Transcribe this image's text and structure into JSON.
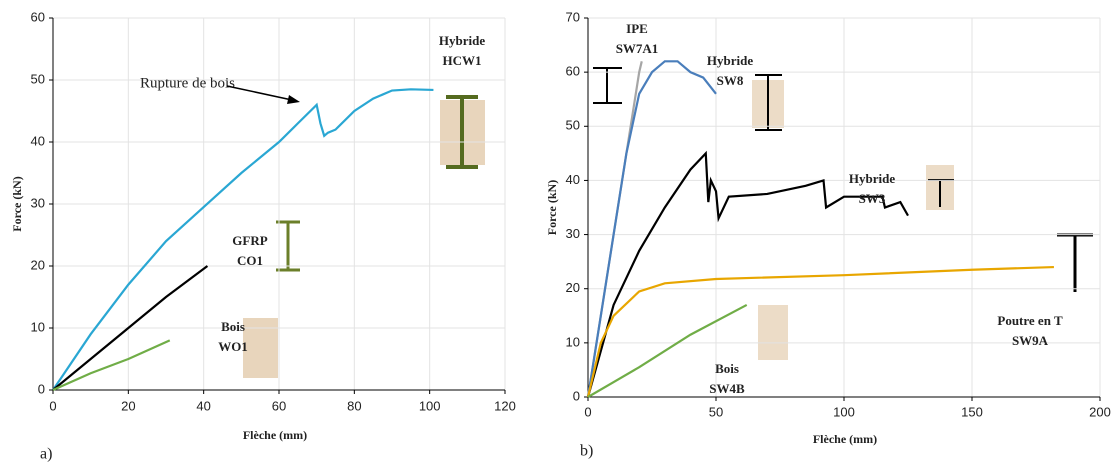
{
  "chart_data": [
    {
      "type": "line",
      "panel_label": "a)",
      "xlabel": "Flèche (mm)",
      "ylabel": "Force (kN)",
      "xlim": [
        0,
        120
      ],
      "xticks": [
        0,
        20,
        40,
        60,
        80,
        100,
        120
      ],
      "ylim": [
        0,
        60
      ],
      "yticks": [
        0,
        10,
        20,
        30,
        40,
        50,
        60
      ],
      "grid": true,
      "annotation": "Rupture de bois",
      "series": [
        {
          "label": [
            "Hybride",
            "HCW1"
          ],
          "color": "#2aa7d3",
          "x": [
            0,
            10,
            20,
            30,
            40,
            50,
            60,
            65,
            70,
            71,
            72,
            73,
            75,
            80,
            85,
            90,
            95,
            101
          ],
          "values": [
            0,
            9,
            17,
            24,
            29.5,
            35,
            40,
            43,
            46,
            43,
            41,
            41.5,
            42,
            45,
            47,
            48.3,
            48.5,
            48.4
          ]
        },
        {
          "label": [
            "GFRP",
            "CO1"
          ],
          "color": "#000000",
          "x": [
            0,
            10,
            20,
            30,
            41
          ],
          "values": [
            0,
            5,
            10,
            15,
            20
          ]
        },
        {
          "label": [
            "Bois",
            "WO1"
          ],
          "color": "#70ad47",
          "x": [
            0,
            10,
            20,
            31
          ],
          "values": [
            0,
            2.7,
            5,
            8
          ]
        }
      ]
    },
    {
      "type": "line",
      "panel_label": "b)",
      "xlabel": "Flèche (mm)",
      "ylabel": "Force (kN)",
      "xlim": [
        0,
        200
      ],
      "xticks": [
        0,
        50,
        100,
        150,
        200
      ],
      "ylim": [
        0,
        70
      ],
      "yticks": [
        0,
        10,
        20,
        30,
        40,
        50,
        60,
        70
      ],
      "grid": true,
      "series": [
        {
          "label": [
            "IPE",
            "SW7A1"
          ],
          "color": "#a6a6a6",
          "x": [
            0,
            5,
            10,
            15,
            20,
            21
          ],
          "values": [
            0,
            15,
            30,
            45,
            60,
            62
          ]
        },
        {
          "label": [
            "Hybride",
            "SW8"
          ],
          "color": "#4a7ebb",
          "x": [
            0,
            5,
            10,
            15,
            20,
            25,
            30,
            35,
            40,
            45,
            50
          ],
          "values": [
            0,
            15,
            30,
            45,
            56,
            60,
            62,
            62,
            60,
            59,
            56
          ]
        },
        {
          "label": [
            "Hybride",
            "SW3"
          ],
          "color": "#000000",
          "x": [
            0,
            10,
            20,
            30,
            40,
            46,
            47,
            48,
            50,
            51,
            55,
            70,
            85,
            92,
            93,
            100,
            115,
            116,
            122,
            125
          ],
          "values": [
            0,
            17,
            27,
            35,
            42,
            45,
            36,
            40,
            38,
            33,
            37,
            37.5,
            39,
            40,
            35,
            37,
            37,
            35,
            36,
            33.5
          ]
        },
        {
          "label": [
            "Poutre en T",
            "SW9A"
          ],
          "color": "#e8a600",
          "x": [
            0,
            5,
            10,
            20,
            30,
            50,
            100,
            150,
            182
          ],
          "values": [
            0,
            10,
            15,
            19.5,
            21,
            21.8,
            22.5,
            23.5,
            24
          ]
        },
        {
          "label": [
            "Bois",
            "SW4B"
          ],
          "color": "#70ad47",
          "x": [
            0,
            20,
            40,
            62
          ],
          "values": [
            0,
            5.5,
            11.5,
            17
          ]
        }
      ]
    }
  ]
}
